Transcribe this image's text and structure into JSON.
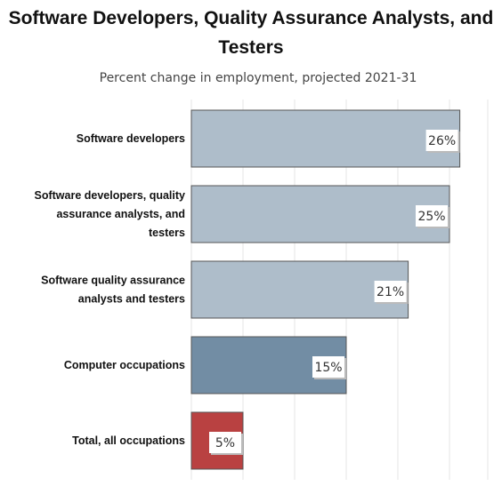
{
  "chart_data": {
    "type": "bar",
    "orientation": "horizontal",
    "title": "Software Developers, Quality Assurance Analysts, and Testers",
    "subtitle": "Percent change in employment, projected 2021-31",
    "categories": [
      "Software developers",
      "Software developers, quality assurance analysts, and testers",
      "Software quality assurance analysts and testers",
      "Computer occupations",
      "Total, all occupations"
    ],
    "category_lines": [
      [
        "Software developers"
      ],
      [
        "Software developers, quality",
        "assurance analysts, and",
        "testers"
      ],
      [
        "Software quality assurance",
        "analysts and testers"
      ],
      [
        "Computer occupations"
      ],
      [
        "Total, all occupations"
      ]
    ],
    "values": [
      26,
      25,
      21,
      15,
      5
    ],
    "value_labels": [
      "26%",
      "25%",
      "21%",
      "15%",
      "5%"
    ],
    "bar_colors": [
      "#aebdca",
      "#aebdca",
      "#aebdca",
      "#728da4",
      "#b94141"
    ],
    "xlim": [
      0,
      28
    ],
    "grid": true
  }
}
